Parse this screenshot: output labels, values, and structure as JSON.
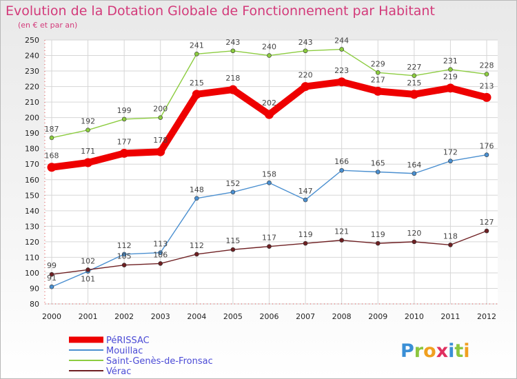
{
  "chart_data": {
    "type": "line",
    "title": "Evolution de la Dotation Globale de Fonctionnement par Habitant",
    "subtitle": "(en € et par an)",
    "x": [
      "2000",
      "2001",
      "2002",
      "2003",
      "2004",
      "2005",
      "2006",
      "2007",
      "2008",
      "2009",
      "2010",
      "2011",
      "2012"
    ],
    "ylim": [
      80,
      250
    ],
    "yticks": [
      "80",
      "90",
      "100",
      "110",
      "120",
      "130",
      "140",
      "150",
      "160",
      "170",
      "180",
      "190",
      "200",
      "210",
      "220",
      "230",
      "240",
      "250"
    ],
    "grid": true,
    "legend_position": "bottom-left",
    "series": [
      {
        "name": "Saint-Genès-de-Fronsac",
        "color": "#8ccc3f",
        "values": [
          187,
          192,
          199,
          200,
          241,
          243,
          240,
          243,
          244,
          229,
          227,
          231,
          228
        ]
      },
      {
        "name": "Mouillac",
        "color": "#4a8fd0",
        "values": [
          91,
          101,
          112,
          113,
          148,
          152,
          158,
          147,
          166,
          165,
          164,
          172,
          176
        ]
      },
      {
        "name": "Vérac",
        "color": "#6e1f22",
        "values": [
          99,
          102,
          105,
          106,
          112,
          115,
          117,
          119,
          121,
          119,
          120,
          118,
          127
        ]
      },
      {
        "name": "PéRISSAC",
        "color": "#ee0000",
        "values": [
          168,
          171,
          177,
          178,
          215,
          218,
          202,
          220,
          223,
          217,
          215,
          219,
          213
        ]
      }
    ],
    "legend_order": [
      "PéRISSAC",
      "Mouillac",
      "Saint-Genès-de-Fronsac",
      "Vérac"
    ]
  },
  "brand": {
    "text": "Proxiti",
    "letters": [
      "P",
      "r",
      "o",
      "x",
      "i",
      "t",
      "i"
    ]
  }
}
